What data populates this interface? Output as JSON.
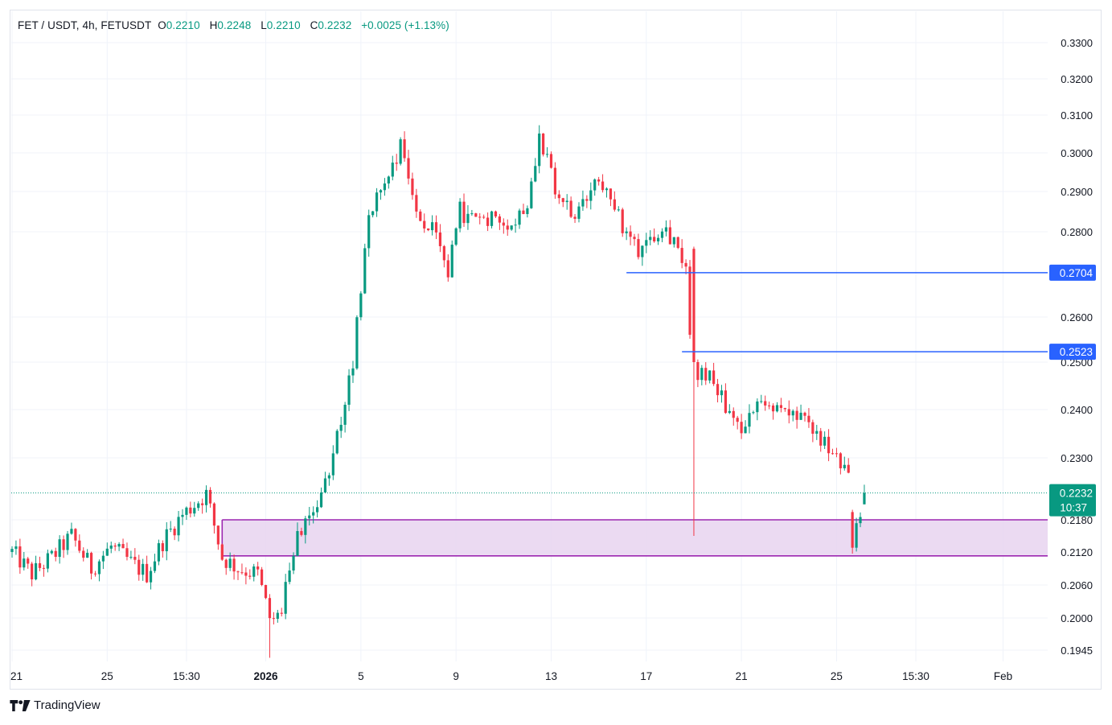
{
  "legend": {
    "symbol": "FET / USDT, 4h, FETUSDT",
    "open_label": "O",
    "open": "0.2210",
    "high_label": "H",
    "high": "0.2248",
    "low_label": "L",
    "low": "0.2210",
    "close_label": "C",
    "close": "0.2232",
    "change": "+0.0025 (+1.13%)"
  },
  "branding": "TradingView",
  "colors": {
    "up": "#089981",
    "down": "#f23645",
    "level_line": "#2962ff",
    "zone_fill": "#e8d3f0",
    "zone_border": "#9c27b0",
    "grid": "#f0f3fa"
  },
  "chart_data": {
    "type": "candlestick",
    "title": "FET / USDT, 4h, FETUSDT",
    "ylim": [
      0.1925,
      0.336
    ],
    "y_ticks": [
      "0.3300",
      "0.3200",
      "0.3100",
      "0.3000",
      "0.2900",
      "0.2800",
      "0.2600",
      "0.2500",
      "0.2400",
      "0.2300",
      "0.2180",
      "0.2120",
      "0.2060",
      "0.2000",
      "0.1945"
    ],
    "x_ticks": [
      {
        "label": "21",
        "t": 0,
        "bold": false
      },
      {
        "label": "25",
        "t": 24,
        "bold": false
      },
      {
        "label": "15:30",
        "t": 44,
        "bold": false
      },
      {
        "label": "2026",
        "t": 64,
        "bold": true
      },
      {
        "label": "5",
        "t": 88,
        "bold": false
      },
      {
        "label": "9",
        "t": 112,
        "bold": false
      },
      {
        "label": "13",
        "t": 136,
        "bold": false
      },
      {
        "label": "17",
        "t": 160,
        "bold": false
      },
      {
        "label": "21",
        "t": 184,
        "bold": false
      },
      {
        "label": "25",
        "t": 208,
        "bold": false
      },
      {
        "label": "15:30",
        "t": 228,
        "bold": false
      },
      {
        "label": "Feb",
        "t": 250,
        "bold": false
      }
    ],
    "current_price": {
      "value": 0.2232,
      "label": "0.2232",
      "countdown": "10:37"
    },
    "horizontal_lines": [
      {
        "value": 0.2704,
        "label": "0.2704",
        "start_t": 155
      },
      {
        "value": 0.2523,
        "label": "0.2523",
        "start_t": 169
      }
    ],
    "zone": {
      "top": 0.218,
      "bottom": 0.2113,
      "start_t": 53
    },
    "anchors": [
      [
        0,
        0.212
      ],
      [
        5,
        0.208
      ],
      [
        10,
        0.211
      ],
      [
        15,
        0.215
      ],
      [
        20,
        0.209
      ],
      [
        25,
        0.213
      ],
      [
        30,
        0.21
      ],
      [
        34,
        0.208
      ],
      [
        38,
        0.214
      ],
      [
        43,
        0.219
      ],
      [
        49,
        0.223
      ],
      [
        53,
        0.211
      ],
      [
        57,
        0.209
      ],
      [
        62,
        0.208
      ],
      [
        65,
        0.2
      ],
      [
        68,
        0.201
      ],
      [
        71,
        0.213
      ],
      [
        75,
        0.218
      ],
      [
        80,
        0.226
      ],
      [
        86,
        0.25
      ],
      [
        90,
        0.285
      ],
      [
        93,
        0.29
      ],
      [
        98,
        0.302
      ],
      [
        102,
        0.285
      ],
      [
        106,
        0.28
      ],
      [
        110,
        0.27
      ],
      [
        113,
        0.285
      ],
      [
        118,
        0.282
      ],
      [
        122,
        0.285
      ],
      [
        126,
        0.282
      ],
      [
        130,
        0.287
      ],
      [
        133,
        0.305
      ],
      [
        137,
        0.29
      ],
      [
        142,
        0.283
      ],
      [
        146,
        0.29
      ],
      [
        150,
        0.293
      ],
      [
        154,
        0.28
      ],
      [
        158,
        0.276
      ],
      [
        160,
        0.278
      ],
      [
        164,
        0.282
      ],
      [
        168,
        0.277
      ],
      [
        170,
        0.27
      ],
      [
        172,
        0.246
      ],
      [
        176,
        0.248
      ],
      [
        181,
        0.239
      ],
      [
        185,
        0.235
      ],
      [
        188,
        0.243
      ],
      [
        193,
        0.24
      ],
      [
        198,
        0.238
      ],
      [
        203,
        0.235
      ],
      [
        207,
        0.23
      ],
      [
        211,
        0.226
      ],
      [
        212,
        0.214
      ],
      [
        215,
        0.2232
      ]
    ],
    "events": [
      {
        "t": 65,
        "low": 0.1932
      },
      {
        "t": 172,
        "open": 0.276,
        "close": 0.25,
        "high": 0.2765,
        "low": 0.215
      },
      {
        "t": 212,
        "open": 0.2195,
        "close": 0.2128,
        "low": 0.2117
      },
      {
        "t": 215,
        "open": 0.221,
        "high": 0.2248,
        "low": 0.221,
        "close": 0.2232
      }
    ]
  }
}
